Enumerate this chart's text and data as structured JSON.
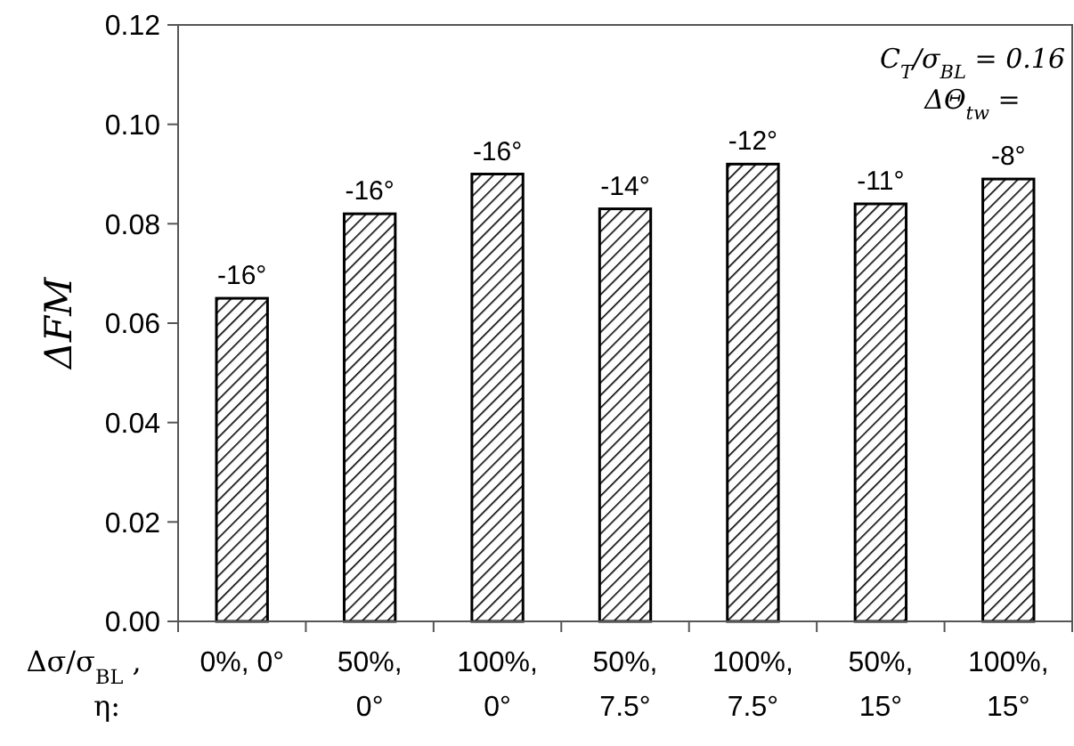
{
  "chart_data": {
    "type": "bar",
    "ylabel": "ΔFM",
    "xlabel": "Δσ/σ$_{BL}$ ,\nη:",
    "categories": [
      "0%, 0°",
      "50%,\n0°",
      "100%,\n0°",
      "50%,\n7.5°",
      "100%,\n7.5°",
      "50%,\n15°",
      "100%,\n15°"
    ],
    "values": [
      0.065,
      0.082,
      0.09,
      0.083,
      0.092,
      0.084,
      0.089
    ],
    "color": "#000000",
    "ylim": [
      0,
      0.12
    ],
    "yticks": [
      {
        "value": 0,
        "label": "0.00"
      },
      {
        "value": 0.02,
        "label": "0.02"
      },
      {
        "value": 0.04,
        "label": "0.04"
      },
      {
        "value": 0.06,
        "label": "0.06"
      },
      {
        "value": 0.08,
        "label": "0.08"
      },
      {
        "value": 0.1,
        "label": "0.10"
      },
      {
        "value": 0.12,
        "label": "0.12"
      }
    ],
    "grid": false,
    "annotations": [
      "C$_{T}$/σ$_{BL}$ = 0.16",
      "ΔΘ$_{tw}$ =",
      {
        "text": "-16°",
        "x": "0%, 0°",
        "y": 0.065
      },
      {
        "text": "-16°",
        "x": "50%,\n0°",
        "y": 0.082
      },
      {
        "text": "-16°",
        "x": "100%,\n0°",
        "y": 0.09
      },
      {
        "text": "-14°",
        "x": "50%,\n7.5°",
        "y": 0.083
      },
      {
        "text": "-12°",
        "x": "100%,\n7.5°",
        "y": 0.092
      },
      {
        "text": "-11°",
        "x": "50%,\n15°",
        "y": 0.084
      },
      {
        "text": "-8°",
        "x": "100%,\n15°",
        "y": 0.089
      }
    ]
  }
}
